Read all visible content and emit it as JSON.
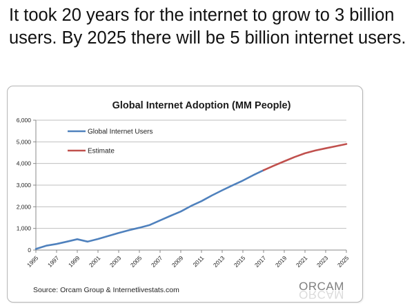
{
  "headline": "It took 20 years for the internet to grow to 3 billion users. By 2025 there will be 5 billion internet users.",
  "chart_data": {
    "type": "line",
    "title": "Global Internet Adoption (MM People)",
    "ylim": [
      0,
      6000
    ],
    "yticks": [
      0,
      1000,
      2000,
      3000,
      4000,
      5000,
      6000
    ],
    "ytick_labels": [
      "0",
      "1,000",
      "2,000",
      "3,000",
      "4,000",
      "5,000",
      "6,000"
    ],
    "xlim": [
      1995,
      2025
    ],
    "xtick_labels": [
      "1995",
      "1997",
      "1999",
      "2001",
      "2003",
      "2005",
      "2007",
      "2009",
      "2011",
      "2013",
      "2015",
      "2017",
      "2019",
      "2021",
      "2023",
      "2025"
    ],
    "grid": "horizontal",
    "legend": "top-left",
    "series": [
      {
        "name": "Global Internet Users",
        "color": "#4f81bd",
        "x": [
          1995,
          1996,
          1997,
          1998,
          1999,
          2000,
          2001,
          2002,
          2003,
          2004,
          2005,
          2006,
          2007,
          2008,
          2009,
          2010,
          2011,
          2012,
          2013,
          2014,
          2015,
          2016,
          2017
        ],
        "values": [
          50,
          200,
          280,
          390,
          500,
          390,
          510,
          650,
          790,
          920,
          1030,
          1160,
          1370,
          1580,
          1780,
          2040,
          2260,
          2520,
          2760,
          2990,
          3210,
          3460,
          3690
        ]
      },
      {
        "name": "Estimate",
        "color": "#c0504d",
        "x": [
          2017,
          2018,
          2019,
          2020,
          2021,
          2022,
          2023,
          2024,
          2025
        ],
        "values": [
          3690,
          3900,
          4100,
          4300,
          4470,
          4600,
          4700,
          4800,
          4900
        ]
      }
    ],
    "source": "Source: Orcam Group & Internetlivestats.com",
    "logo": "ORCAM"
  }
}
